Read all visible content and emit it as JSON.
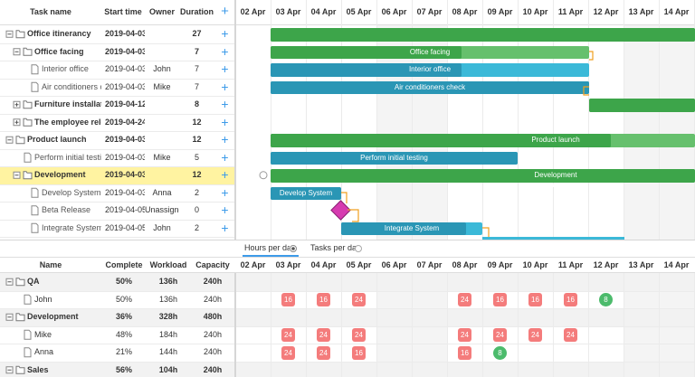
{
  "gantt": {
    "columns": [
      "Task name",
      "Start time",
      "Owner",
      "Duration"
    ],
    "add": "+",
    "days": [
      "02 Apr",
      "03 Apr",
      "04 Apr",
      "05 Apr",
      "06 Apr",
      "07 Apr",
      "08 Apr",
      "09 Apr",
      "10 Apr",
      "11 Apr",
      "12 Apr",
      "13 Apr",
      "14 Apr"
    ],
    "tasks": [
      {
        "name": "Office itinerancy",
        "start": "2019-04-03",
        "duration": 27
      },
      {
        "name": "Office facing",
        "start": "2019-04-03",
        "duration": 7
      },
      {
        "name": "Interior office",
        "start": "2019-04-03",
        "owner": "John",
        "duration": 7
      },
      {
        "name": "Air conditioners check",
        "start": "2019-04-03",
        "owner": "Mike",
        "duration": 7
      },
      {
        "name": "Furniture installation",
        "start": "2019-04-12",
        "duration": 8
      },
      {
        "name": "The employee relocation",
        "start": "2019-04-24",
        "duration": 12
      },
      {
        "name": "Product launch",
        "start": "2019-04-03",
        "duration": 12
      },
      {
        "name": "Perform initial testing",
        "start": "2019-04-03",
        "owner": "Mike",
        "duration": 5
      },
      {
        "name": "Development",
        "start": "2019-04-03",
        "duration": 12
      },
      {
        "name": "Develop System",
        "start": "2019-04-03",
        "owner": "Anna",
        "duration": 2
      },
      {
        "name": "Beta Release",
        "start": "2019-04-05",
        "owner": "Unassigned",
        "duration": 0
      },
      {
        "name": "Integrate System",
        "start": "2019-04-05",
        "owner": "John",
        "duration": 2
      }
    ]
  },
  "toolbar": {
    "options": [
      "Hours per day",
      "Tasks per day"
    ]
  },
  "resources": {
    "columns": [
      "Name",
      "Complete",
      "Workload",
      "Capacity"
    ],
    "rows": [
      {
        "name": "QA",
        "complete": "50%",
        "workload": "136h",
        "capacity": "240h",
        "hours": [
          null,
          null,
          null,
          null,
          null,
          null,
          null,
          null,
          null,
          null,
          null,
          null,
          null
        ]
      },
      {
        "name": "John",
        "complete": "50%",
        "workload": "136h",
        "capacity": "240h",
        "hours": [
          null,
          16,
          16,
          24,
          null,
          null,
          24,
          16,
          16,
          16,
          8,
          null,
          null
        ]
      },
      {
        "name": "Development",
        "complete": "36%",
        "workload": "328h",
        "capacity": "480h",
        "hours": [
          null,
          null,
          null,
          null,
          null,
          null,
          null,
          null,
          null,
          null,
          null,
          null,
          null
        ]
      },
      {
        "name": "Mike",
        "complete": "48%",
        "workload": "184h",
        "capacity": "240h",
        "hours": [
          null,
          24,
          24,
          24,
          null,
          null,
          24,
          24,
          24,
          24,
          null,
          null,
          null
        ]
      },
      {
        "name": "Anna",
        "complete": "21%",
        "workload": "144h",
        "capacity": "240h",
        "hours": [
          null,
          24,
          24,
          16,
          null,
          null,
          16,
          8,
          null,
          null,
          null,
          null,
          null
        ]
      },
      {
        "name": "Sales",
        "complete": "56%",
        "workload": "104h",
        "capacity": "240h",
        "hours": [
          null,
          null,
          null,
          null,
          null,
          null,
          null,
          null,
          null,
          null,
          null,
          null,
          null
        ]
      }
    ]
  }
}
